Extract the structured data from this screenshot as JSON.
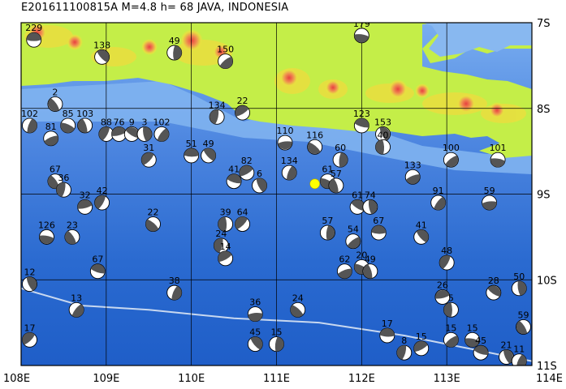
{
  "title": "E201611100815A M=4.8 h= 68 JAVA, INDONESIA",
  "axes": {
    "lon_labels": [
      "108E",
      "109E",
      "110E",
      "111E",
      "112E",
      "113E",
      "114E"
    ],
    "lat_labels": [
      "7S",
      "8S",
      "9S",
      "10S",
      "11S"
    ],
    "lon_range": [
      108,
      114
    ],
    "lat_range": [
      -7,
      -11
    ]
  },
  "colors": {
    "ocean_deep": "#2060c8",
    "ocean_mid": "#5088e0",
    "ocean_shallow": "#88b8f0",
    "land_low": "#c8f040",
    "land_mid": "#e8e040",
    "land_high": "#f09050",
    "land_peak": "#e84040",
    "trench": "#c8d8f0",
    "epicenter": "#ffff00"
  },
  "epicenter": {
    "lon": 111.45,
    "lat": -8.88
  },
  "trench_line": [
    [
      108,
      -10.1
    ],
    [
      108.7,
      -10.3
    ],
    [
      109.5,
      -10.35
    ],
    [
      110.5,
      -10.45
    ],
    [
      111.5,
      -10.5
    ],
    [
      112.5,
      -10.65
    ],
    [
      113,
      -10.75
    ],
    [
      113.5,
      -10.85
    ],
    [
      114,
      -10.95
    ]
  ],
  "events": [
    {
      "label": "229",
      "lon": 108.15,
      "lat": -7.2
    },
    {
      "label": "138",
      "lon": 108.95,
      "lat": -7.4
    },
    {
      "label": "49",
      "lon": 109.8,
      "lat": -7.35
    },
    {
      "label": "150",
      "lon": 110.4,
      "lat": -7.45
    },
    {
      "label": "179",
      "lon": 112.0,
      "lat": -7.15
    },
    {
      "label": "2",
      "lon": 108.4,
      "lat": -7.95
    },
    {
      "label": "134",
      "lon": 110.3,
      "lat": -8.1
    },
    {
      "label": "22",
      "lon": 110.6,
      "lat": -8.05
    },
    {
      "label": "123",
      "lon": 112.0,
      "lat": -8.2
    },
    {
      "label": "153",
      "lon": 112.25,
      "lat": -8.3
    },
    {
      "label": "102",
      "lon": 108.1,
      "lat": -8.2
    },
    {
      "label": "81",
      "lon": 108.35,
      "lat": -8.35
    },
    {
      "label": "85",
      "lon": 108.55,
      "lat": -8.2
    },
    {
      "label": "103",
      "lon": 108.75,
      "lat": -8.2
    },
    {
      "label": "88",
      "lon": 109.0,
      "lat": -8.3
    },
    {
      "label": "76",
      "lon": 109.15,
      "lat": -8.3
    },
    {
      "label": "9",
      "lon": 109.3,
      "lat": -8.3
    },
    {
      "label": "3",
      "lon": 109.45,
      "lat": -8.3
    },
    {
      "label": "102",
      "lon": 109.65,
      "lat": -8.3
    },
    {
      "label": "110",
      "lon": 111.1,
      "lat": -8.4
    },
    {
      "label": "116",
      "lon": 111.45,
      "lat": -8.45
    },
    {
      "label": "40",
      "lon": 112.25,
      "lat": -8.45
    },
    {
      "label": "31",
      "lon": 109.5,
      "lat": -8.6
    },
    {
      "label": "51",
      "lon": 110.0,
      "lat": -8.55
    },
    {
      "label": "49",
      "lon": 110.2,
      "lat": -8.55
    },
    {
      "label": "60",
      "lon": 111.75,
      "lat": -8.6
    },
    {
      "label": "100",
      "lon": 113.05,
      "lat": -8.6
    },
    {
      "label": "101",
      "lon": 113.6,
      "lat": -8.6
    },
    {
      "label": "67",
      "lon": 108.4,
      "lat": -8.85
    },
    {
      "label": "36",
      "lon": 108.5,
      "lat": -8.95
    },
    {
      "label": "82",
      "lon": 110.65,
      "lat": -8.75
    },
    {
      "label": "41",
      "lon": 110.5,
      "lat": -8.85
    },
    {
      "label": "6",
      "lon": 110.8,
      "lat": -8.9
    },
    {
      "label": "134",
      "lon": 111.15,
      "lat": -8.75
    },
    {
      "label": "133",
      "lon": 112.6,
      "lat": -8.8
    },
    {
      "label": "61",
      "lon": 111.6,
      "lat": -8.85
    },
    {
      "label": "57",
      "lon": 111.7,
      "lat": -8.9
    },
    {
      "label": "42",
      "lon": 108.95,
      "lat": -9.1
    },
    {
      "label": "32",
      "lon": 108.75,
      "lat": -9.15
    },
    {
      "label": "61",
      "lon": 111.95,
      "lat": -9.15
    },
    {
      "label": "74",
      "lon": 112.1,
      "lat": -9.15
    },
    {
      "label": "91",
      "lon": 112.9,
      "lat": -9.1
    },
    {
      "label": "59",
      "lon": 113.5,
      "lat": -9.1
    },
    {
      "label": "22",
      "lon": 109.55,
      "lat": -9.35
    },
    {
      "label": "39",
      "lon": 110.4,
      "lat": -9.35
    },
    {
      "label": "64",
      "lon": 110.6,
      "lat": -9.35
    },
    {
      "label": "67",
      "lon": 112.2,
      "lat": -9.45
    },
    {
      "label": "41",
      "lon": 112.7,
      "lat": -9.5
    },
    {
      "label": "57",
      "lon": 111.6,
      "lat": -9.45
    },
    {
      "label": "54",
      "lon": 111.9,
      "lat": -9.55
    },
    {
      "label": "126",
      "lon": 108.3,
      "lat": -9.5
    },
    {
      "label": "23",
      "lon": 108.6,
      "lat": -9.5
    },
    {
      "label": "24",
      "lon": 110.35,
      "lat": -9.6
    },
    {
      "label": "14",
      "lon": 110.4,
      "lat": -9.75
    },
    {
      "label": "67",
      "lon": 108.9,
      "lat": -9.9
    },
    {
      "label": "12",
      "lon": 108.1,
      "lat": -10.05
    },
    {
      "label": "38",
      "lon": 109.8,
      "lat": -10.15
    },
    {
      "label": "62",
      "lon": 111.8,
      "lat": -9.9
    },
    {
      "label": "20",
      "lon": 112.0,
      "lat": -9.85
    },
    {
      "label": "49",
      "lon": 112.1,
      "lat": -9.9
    },
    {
      "label": "48",
      "lon": 113.0,
      "lat": -9.8
    },
    {
      "label": "26",
      "lon": 112.95,
      "lat": -10.2
    },
    {
      "label": "28",
      "lon": 113.55,
      "lat": -10.15
    },
    {
      "label": "50",
      "lon": 113.85,
      "lat": -10.1
    },
    {
      "label": "13",
      "lon": 108.65,
      "lat": -10.35
    },
    {
      "label": "36",
      "lon": 110.75,
      "lat": -10.4
    },
    {
      "label": "24",
      "lon": 111.25,
      "lat": -10.35
    },
    {
      "label": "5",
      "lon": 113.05,
      "lat": -10.35
    },
    {
      "label": "17",
      "lon": 108.1,
      "lat": -10.7
    },
    {
      "label": "17",
      "lon": 112.3,
      "lat": -10.65
    },
    {
      "label": "45",
      "lon": 110.75,
      "lat": -10.75
    },
    {
      "label": "15",
      "lon": 111.0,
      "lat": -10.75
    },
    {
      "label": "15",
      "lon": 113.05,
      "lat": -10.7
    },
    {
      "label": "15",
      "lon": 113.3,
      "lat": -10.7
    },
    {
      "label": "59",
      "lon": 113.9,
      "lat": -10.55
    },
    {
      "label": "8",
      "lon": 112.5,
      "lat": -10.85
    },
    {
      "label": "15",
      "lon": 112.7,
      "lat": -10.8
    },
    {
      "label": "45",
      "lon": 113.4,
      "lat": -10.85
    },
    {
      "label": "21",
      "lon": 113.7,
      "lat": -10.9
    },
    {
      "label": "11",
      "lon": 113.85,
      "lat": -10.95
    }
  ]
}
